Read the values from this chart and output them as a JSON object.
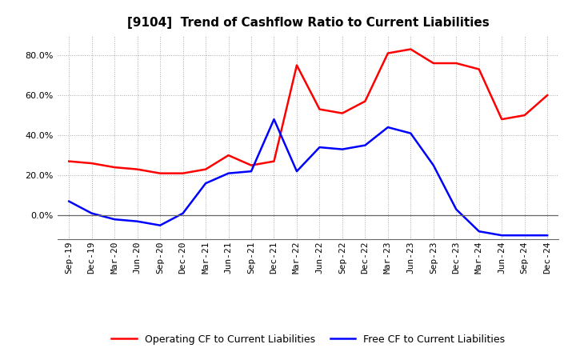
{
  "title": "[9104]  Trend of Cashflow Ratio to Current Liabilities",
  "x_labels": [
    "Sep-19",
    "Dec-19",
    "Mar-20",
    "Jun-20",
    "Sep-20",
    "Dec-20",
    "Mar-21",
    "Jun-21",
    "Sep-21",
    "Dec-21",
    "Mar-22",
    "Jun-22",
    "Sep-22",
    "Dec-22",
    "Mar-23",
    "Jun-23",
    "Sep-23",
    "Dec-23",
    "Mar-24",
    "Jun-24",
    "Sep-24",
    "Dec-24"
  ],
  "operating_cf": [
    0.27,
    0.26,
    0.24,
    0.23,
    0.21,
    0.21,
    0.23,
    0.3,
    0.25,
    0.27,
    0.75,
    0.53,
    0.51,
    0.57,
    0.81,
    0.83,
    0.76,
    0.76,
    0.73,
    0.48,
    0.5,
    0.6
  ],
  "free_cf": [
    0.07,
    0.01,
    -0.02,
    -0.03,
    -0.05,
    0.01,
    0.16,
    0.21,
    0.22,
    0.48,
    0.22,
    0.34,
    0.33,
    0.35,
    0.44,
    0.41,
    0.25,
    0.03,
    -0.08,
    -0.1,
    -0.1,
    -0.1
  ],
  "operating_cf_color": "#ff0000",
  "free_cf_color": "#0000ff",
  "ylim_min": -0.12,
  "ylim_max": 0.9,
  "yticks": [
    0.0,
    0.2,
    0.4,
    0.6,
    0.8
  ],
  "legend_operating": "Operating CF to Current Liabilities",
  "legend_free": "Free CF to Current Liabilities",
  "background_color": "#ffffff",
  "grid_color": "#aaaaaa",
  "title_fontsize": 11,
  "axis_fontsize": 8,
  "legend_fontsize": 9,
  "line_width": 1.8
}
